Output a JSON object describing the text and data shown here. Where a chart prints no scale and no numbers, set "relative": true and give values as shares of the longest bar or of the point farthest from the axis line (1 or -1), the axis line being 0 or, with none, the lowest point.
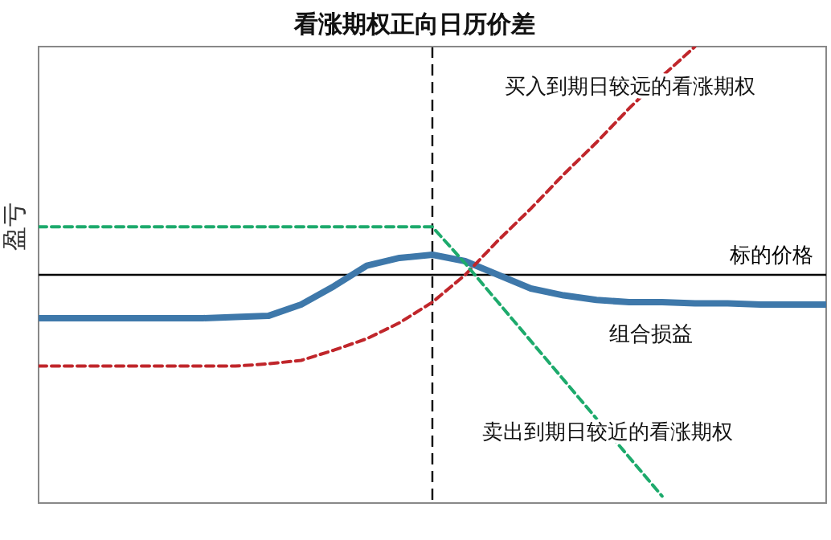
{
  "chart_data": {
    "type": "line",
    "title": "看涨期权正向日历价差",
    "ylabel": "盈亏",
    "relative": true,
    "line_style": "solid",
    "marker": "none",
    "grid": false,
    "legend": false,
    "categories": [
      null,
      null,
      null,
      null,
      null,
      null,
      null,
      null,
      null,
      null,
      null,
      null,
      null,
      null,
      null,
      null,
      null,
      null,
      null,
      null,
      null,
      null,
      null,
      null,
      null
    ],
    "series": [
      {
        "name": "组合损益",
        "color": "#3e78aa",
        "values": [
          -0.19,
          -0.19,
          -0.19,
          -0.19,
          -0.19,
          -0.19,
          -0.185,
          -0.18,
          -0.13,
          -0.05,
          0.04,
          0.074,
          0.088,
          0.06,
          0.0,
          -0.06,
          -0.09,
          -0.11,
          -0.12,
          -0.12,
          -0.125,
          -0.125,
          -0.13,
          -0.13,
          -0.13
        ]
      },
      {
        "name": "买入到期日较远的看涨期权",
        "color": "#c0262b",
        "line_style": "dashed",
        "values": [
          -0.4,
          -0.4,
          -0.4,
          -0.4,
          -0.4,
          -0.4,
          -0.4,
          -0.39,
          -0.375,
          -0.33,
          -0.28,
          -0.21,
          -0.12,
          0.0,
          0.15,
          0.29,
          0.44,
          0.58,
          0.73,
          0.87,
          1.0,
          null,
          null,
          null,
          null
        ]
      },
      {
        "name": "卖出到期日较近的看涨期权",
        "color": "#1daa6c",
        "line_style": "dashed",
        "values": [
          0.21,
          0.21,
          0.21,
          0.21,
          0.21,
          0.21,
          0.21,
          0.21,
          0.21,
          0.21,
          0.21,
          0.21,
          0.21,
          0.05,
          -0.12,
          -0.29,
          -0.46,
          -0.63,
          -0.8,
          -0.97,
          null,
          null,
          null,
          null,
          null
        ]
      }
    ],
    "ref_lines": [
      {
        "axis": "y",
        "value": 0,
        "label": "标的价格",
        "color": "#000000",
        "line_style": "solid"
      }
    ]
  }
}
